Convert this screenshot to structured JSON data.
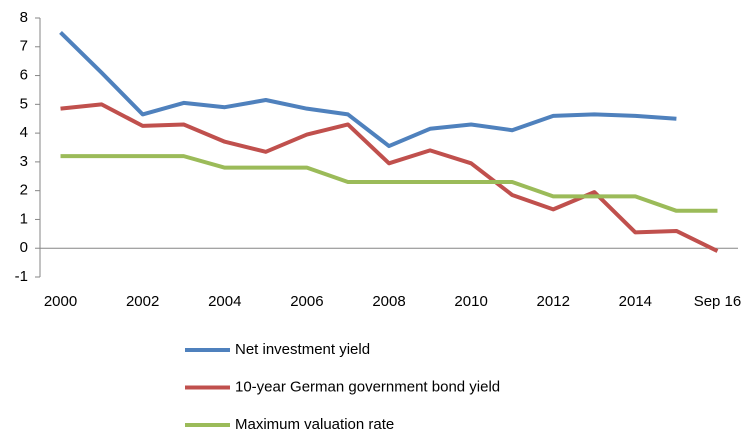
{
  "chart_data": {
    "type": "line",
    "categories": [
      "2000",
      null,
      "2002",
      null,
      "2004",
      null,
      "2006",
      null,
      "2008",
      null,
      "2010",
      null,
      "2012",
      null,
      "2014",
      null,
      "Sep 16"
    ],
    "series": [
      {
        "name": "Net investment yield",
        "color": "#4f81bd",
        "values": [
          7.5,
          6.1,
          4.65,
          5.05,
          4.9,
          5.15,
          4.85,
          4.65,
          3.55,
          4.15,
          4.3,
          4.1,
          4.6,
          4.65,
          4.6,
          4.5,
          null
        ]
      },
      {
        "name": "10-year German government bond yield",
        "color": "#c0504d",
        "values": [
          4.85,
          5.0,
          4.25,
          4.3,
          3.7,
          3.35,
          3.95,
          4.3,
          2.95,
          3.4,
          2.95,
          1.85,
          1.35,
          1.95,
          0.55,
          0.6,
          -0.1
        ]
      },
      {
        "name": "Maximum valuation rate",
        "color": "#9bbb59",
        "values": [
          3.2,
          3.2,
          3.2,
          3.2,
          2.8,
          2.8,
          2.8,
          2.3,
          2.3,
          2.3,
          2.3,
          2.3,
          1.8,
          1.8,
          1.8,
          1.3,
          1.3
        ]
      }
    ],
    "ylim": [
      -1,
      8
    ],
    "yticks": [
      -1,
      0,
      1,
      2,
      3,
      4,
      5,
      6,
      7,
      8
    ],
    "grid": false,
    "legend": "bottom"
  }
}
